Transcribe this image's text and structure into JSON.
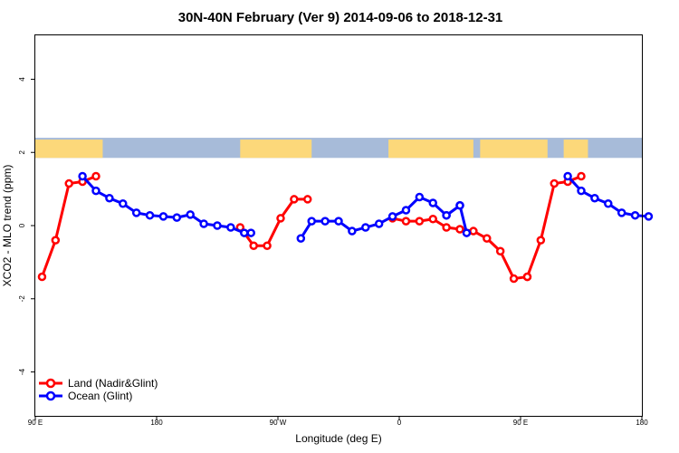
{
  "chart_data": {
    "type": "line",
    "title": "30N-40N February (Ver 9)   2014-09-06 to 2018-12-31",
    "xlabel": "Longitude (deg E)",
    "ylabel": "XCO2 - MLO trend (ppm)",
    "xlim": [
      90,
      450
    ],
    "ylim": [
      -5.2,
      5.2
    ],
    "x_tick_labels": [
      {
        "value": 90,
        "label": "90 E"
      },
      {
        "value": 180,
        "label": "180"
      },
      {
        "value": 270,
        "label": "90 W"
      },
      {
        "value": 360,
        "label": "0"
      },
      {
        "value": 450,
        "label": "90 E"
      },
      {
        "value": 540,
        "label": "180"
      }
    ],
    "y_tick_labels": [
      {
        "value": -4,
        "label": "-4"
      },
      {
        "value": -2,
        "label": "-2"
      },
      {
        "value": 0,
        "label": "0"
      },
      {
        "value": 2,
        "label": "2"
      },
      {
        "value": 4,
        "label": "4"
      }
    ],
    "series": [
      {
        "name": "Land (Nadir&Glint)",
        "color": "#ff0000",
        "x": [
          95,
          105,
          115,
          125,
          135
        ],
        "y": [
          -1.4,
          -0.4,
          1.15,
          1.2,
          1.35
        ]
      },
      {
        "name": "Ocean (Glint)",
        "color": "#0000ff",
        "x": [
          125,
          135,
          145,
          155,
          165,
          175,
          185,
          195,
          205,
          215,
          225,
          235,
          245,
          250
        ],
        "y": [
          1.35,
          0.95,
          0.75,
          0.6,
          0.35,
          0.28,
          0.25,
          0.22,
          0.3,
          0.05,
          0.0,
          -0.05,
          -0.2,
          -0.2
        ]
      },
      {
        "name": "Land (Nadir&Glint)",
        "color": "#ff0000",
        "x": [
          245,
          245
        ],
        "y": [
          -0.2,
          -0.2
        ],
        "hidden": true
      },
      {
        "name": "Land (Nadir&Glint)",
        "color": "#ff0000",
        "x": [
          245,
          245
        ],
        "y": [
          -0.2,
          -0.2
        ],
        "hidden": true
      }
    ],
    "land_segments": [
      {
        "x": [
          95,
          105,
          115,
          125,
          135
        ],
        "y": [
          -1.4,
          -0.4,
          1.15,
          1.2,
          1.35
        ]
      },
      {
        "x": [
          242,
          252,
          262,
          272,
          282,
          292
        ],
        "y": [
          -0.05,
          -0.55,
          -0.55,
          0.2,
          0.72,
          0.72
        ]
      },
      {
        "x": [
          355,
          365,
          375,
          385,
          395,
          405,
          415,
          425,
          435,
          445,
          455
        ],
        "y": [
          0.2,
          0.12,
          0.12,
          0.18,
          -0.05,
          -0.1,
          -0.15,
          -0.35,
          -0.7,
          -1.45,
          -1.4
        ]
      },
      {
        "x": [
          455,
          465,
          475,
          485,
          495
        ],
        "y": [
          -1.4,
          -0.4,
          1.15,
          1.2,
          1.35
        ]
      }
    ],
    "ocean_segments": [
      {
        "x": [
          125,
          135,
          145,
          155,
          165,
          175,
          185,
          195,
          205,
          215,
          225,
          235,
          245,
          250
        ],
        "y": [
          1.35,
          0.95,
          0.75,
          0.6,
          0.35,
          0.28,
          0.25,
          0.22,
          0.3,
          0.05,
          0.0,
          -0.05,
          -0.2,
          -0.2
        ]
      },
      {
        "x": [
          287,
          295,
          305,
          315,
          325,
          335,
          345,
          355,
          365,
          375,
          385,
          395,
          405
        ],
        "y": [
          -0.35,
          0.12,
          0.12,
          0.12,
          -0.15,
          -0.05,
          0.05,
          0.25,
          0.42,
          0.78,
          0.62,
          0.28,
          0.55
        ]
      },
      {
        "x": [
          395,
          405,
          410
        ],
        "y": [
          0.28,
          0.55,
          -0.2
        ]
      },
      {
        "x": [
          485,
          495,
          505,
          515,
          525,
          535,
          545
        ],
        "y": [
          1.35,
          0.95,
          0.75,
          0.6,
          0.35,
          0.28,
          0.25
        ]
      }
    ],
    "legend": {
      "placement": "bottom-left",
      "entries": [
        {
          "label": "Land (Nadir&Glint)",
          "color": "#ff0000"
        },
        {
          "label": "Ocean (Glint)",
          "color": "#0000ff"
        }
      ]
    },
    "map_band": {
      "y_range": [
        1.85,
        2.4
      ],
      "ocean_color": "#a7bbd9",
      "land_color": "#fcd87a"
    },
    "grid": false
  }
}
